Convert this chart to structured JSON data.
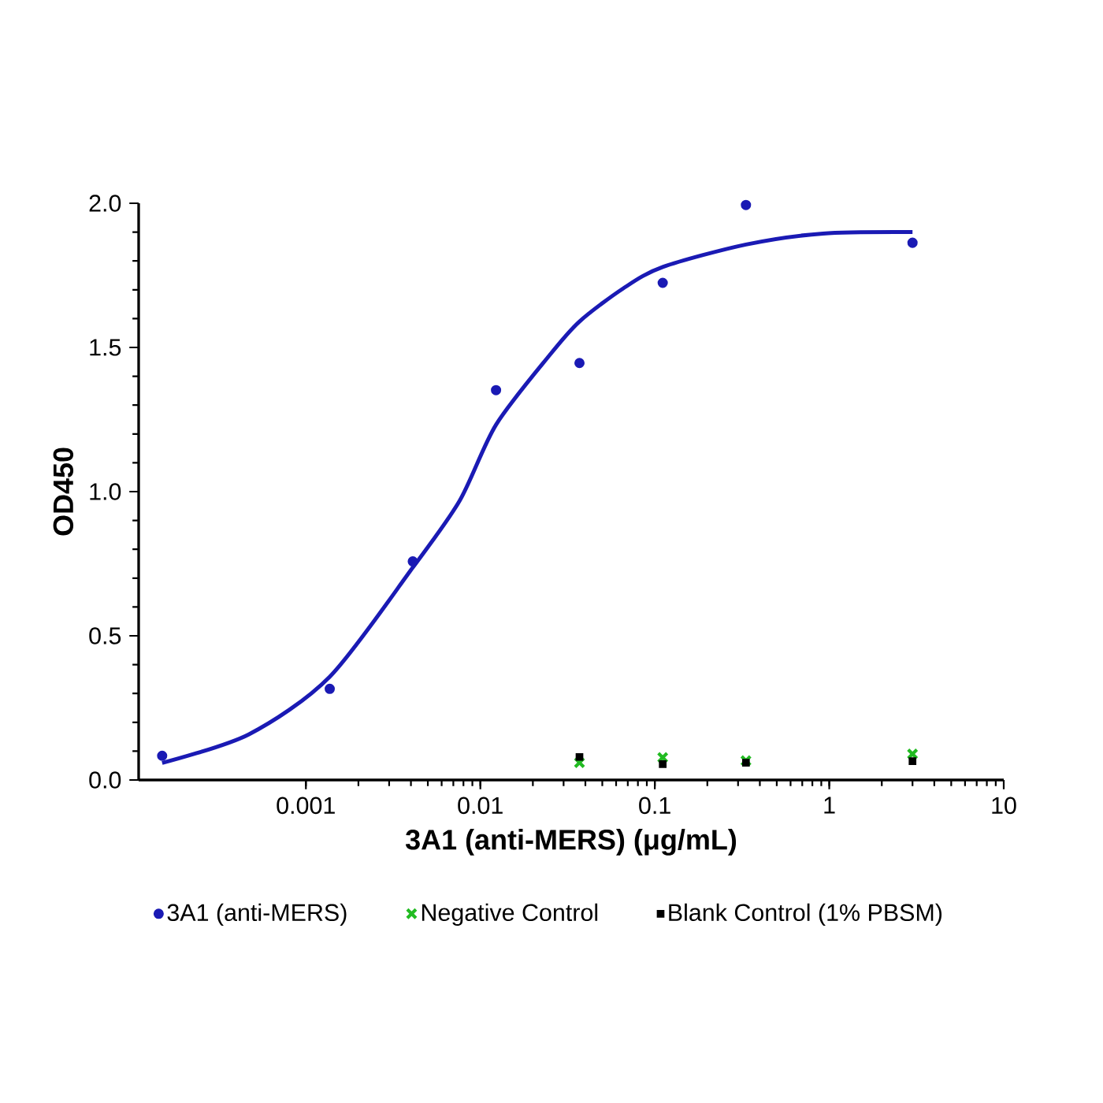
{
  "chart_data": {
    "type": "scatter",
    "xlabel": "3A1 (anti-MERS) (μg/mL)",
    "ylabel": "OD450",
    "log": "x",
    "xlim": [
      0.00011,
      10
    ],
    "ylim": [
      0,
      2.0
    ],
    "xticks": [
      0.001,
      0.01,
      0.1,
      1,
      10
    ],
    "yticks": [
      {
        "value": 0,
        "label": "0.0"
      },
      {
        "value": 0.5,
        "label": "0.5"
      },
      {
        "value": 1.0,
        "label": "1.0"
      },
      {
        "value": 1.5,
        "label": "1.5"
      },
      {
        "value": 2.0,
        "label": "2.0"
      }
    ],
    "legend": "bottom",
    "grid": false,
    "series": [
      {
        "type": "line",
        "color": "#1a1ab4",
        "marker": "none",
        "x": [
          0.00015,
          0.00047,
          0.00137,
          0.0041,
          0.0076,
          0.0123,
          0.025,
          0.037,
          0.066,
          0.111,
          0.333,
          0.92,
          3.0
        ],
        "values": [
          0.059,
          0.158,
          0.358,
          0.737,
          0.968,
          1.232,
          1.474,
          1.59,
          1.705,
          1.779,
          1.857,
          1.895,
          1.9
        ]
      },
      {
        "name": "3A1 (anti-MERS)",
        "color": "#1a1ab4",
        "marker": "circle",
        "x": [
          0.00015,
          0.00137,
          0.0041,
          0.0123,
          0.037,
          0.111,
          0.333,
          3.0
        ],
        "values": [
          0.084,
          0.316,
          0.758,
          1.352,
          1.446,
          1.724,
          1.994,
          1.863
        ]
      },
      {
        "name": "Negative Control",
        "color": "#22bb22",
        "marker": "cross",
        "x": [
          0.037,
          0.111,
          0.333,
          3.0
        ],
        "values": [
          0.06,
          0.078,
          0.067,
          0.09
        ]
      },
      {
        "name": "Blank Control (1% PBSM)",
        "color": "#000000",
        "marker": "square",
        "x": [
          0.037,
          0.111,
          0.333,
          3.0
        ],
        "values": [
          0.08,
          0.055,
          0.06,
          0.065
        ]
      }
    ]
  }
}
